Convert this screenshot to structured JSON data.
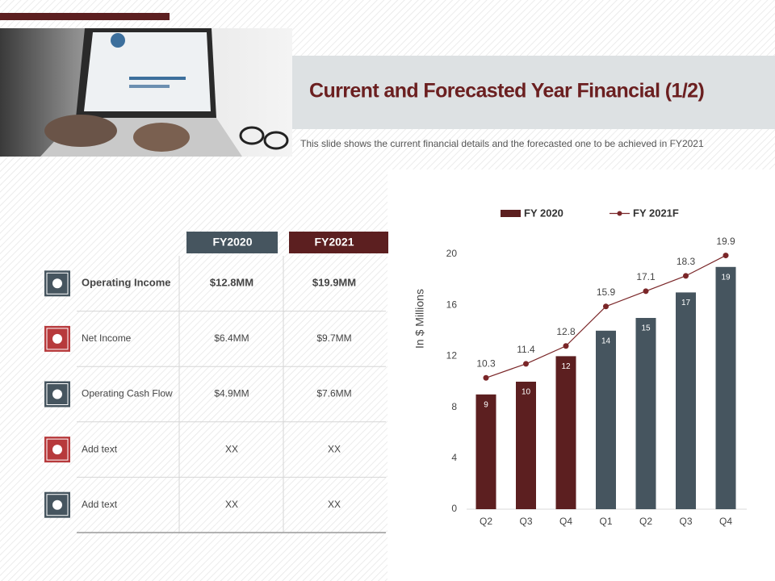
{
  "header": {
    "title": "Current and Forecasted Year Financial (1/2)",
    "subtitle": "This slide shows the current financial details and the forecasted one to be achieved in FY2021"
  },
  "table": {
    "columns": [
      "FY2020",
      "FY2021"
    ],
    "rows": [
      [
        "Operating Income",
        "$12.8MM",
        "$19.9MM"
      ],
      [
        "Net Income",
        "$6.4MM",
        "$9.7MM"
      ],
      [
        "Operating Cash Flow",
        "$4.9MM",
        "$7.6MM"
      ],
      [
        "Add text",
        "XX",
        "XX"
      ],
      [
        "Add text",
        "XX",
        "XX"
      ]
    ]
  },
  "chart_data": {
    "type": "combo",
    "categories": [
      "Q2",
      "Q3",
      "Q4",
      "Q1",
      "Q2",
      "Q3",
      "Q4"
    ],
    "ylabel": "In $ Millions",
    "ylim": [
      0,
      20
    ],
    "yticks": [
      0,
      4,
      8,
      12,
      16,
      20
    ],
    "grid": false,
    "legend": "top",
    "series": [
      {
        "name": "FY 2020",
        "type": "bar",
        "color": "#5c1f20",
        "colors": [
          "#5c1f20",
          "#5c1f20",
          "#5c1f20",
          "#46555f",
          "#46555f",
          "#46555f",
          "#46555f"
        ],
        "values": [
          9,
          10,
          12,
          14,
          15,
          17,
          19
        ]
      },
      {
        "name": "FY 2021F",
        "type": "line",
        "color": "#7a2628",
        "values": [
          10.3,
          11.4,
          12.8,
          15.9,
          17.1,
          18.3,
          19.9
        ]
      }
    ]
  }
}
